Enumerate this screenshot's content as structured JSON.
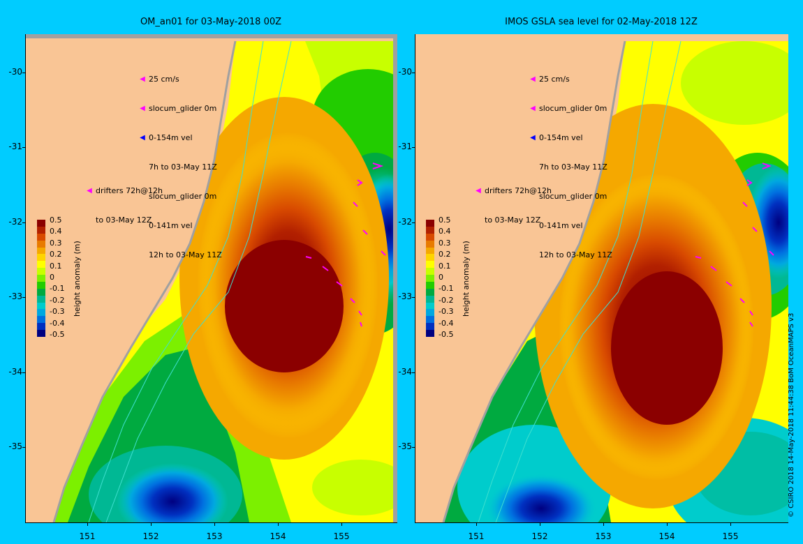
{
  "left_panel": {
    "title": "OM_an01 for 03-May-2018 00Z",
    "legend_lines": [
      "25 cm/s",
      "slocum_glider 0m",
      "0-154m vel",
      "7h to 03-May 11Z",
      "slocum_glider 0m",
      "0-141m vel",
      "12h to 03-May 11Z"
    ],
    "drifters_lines": [
      "drifters 72h@12h",
      "to 03-May 12Z"
    ]
  },
  "right_panel": {
    "title": "IMOS GSLA sea level  for 02-May-2018 12Z",
    "legend_lines": [
      "25 cm/s",
      "slocum_glider 0m",
      "0-154m vel",
      "7h to 03-May 11Z",
      "slocum_glider 0m",
      "0-141m vel",
      "12h to 03-May 11Z"
    ],
    "drifters_lines": [
      "drifters 72h@12h",
      "to 03-May 12Z"
    ]
  },
  "y_axis_labels": [
    "-30",
    "-31",
    "-32",
    "-33",
    "-34",
    "-35"
  ],
  "x_axis_labels": [
    "151",
    "152",
    "153",
    "154",
    "155"
  ],
  "colorbar": {
    "title": "height anomaly (m)",
    "tick_labels": [
      "0.5",
      "0.4",
      "0.3",
      "0.2",
      "0.1",
      "0",
      "-0.1",
      "-0.2",
      "-0.3",
      "-0.4",
      "-0.5"
    ],
    "colors": [
      "#8b0000",
      "#b22000",
      "#d84a00",
      "#e87a00",
      "#f5a800",
      "#ffd400",
      "#ffff00",
      "#c8ff00",
      "#7cf000",
      "#22cc00",
      "#00aa40",
      "#00b894",
      "#00cccc",
      "#00a8e0",
      "#0070e0",
      "#0030c0",
      "#000080"
    ]
  },
  "credit": "© CSIRO 2018   14-May-2018 11:44:38 BoM OceanMAPS v3",
  "colors": {
    "background": "#00ccff",
    "land": "#f9c595",
    "arrow_glider": "#ff00ff",
    "arrow_vel": "#0000ff",
    "contour": "#40e0d0"
  }
}
